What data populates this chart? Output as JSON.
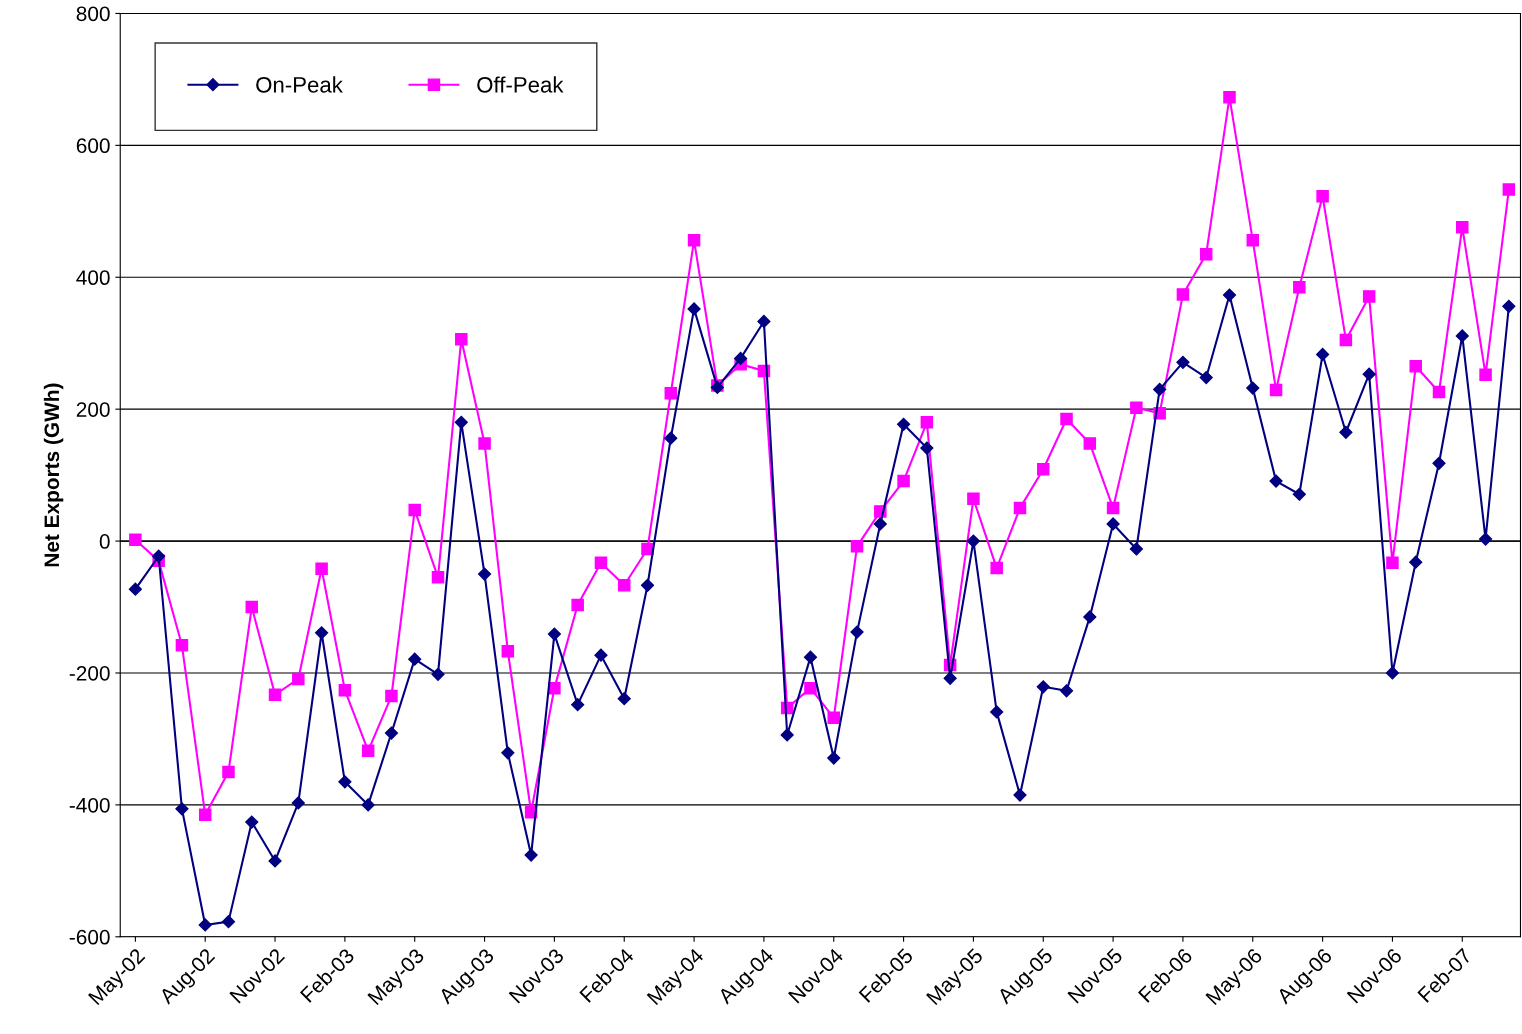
{
  "chart_data": {
    "type": "line",
    "ylabel": "Net Exports (GWh)",
    "categories": [
      "May-02",
      null,
      null,
      "Aug-02",
      null,
      null,
      "Nov-02",
      null,
      null,
      "Feb-03",
      null,
      null,
      "May-03",
      null,
      null,
      "Aug-03",
      null,
      null,
      "Nov-03",
      null,
      null,
      "Feb-04",
      null,
      null,
      "May-04",
      null,
      null,
      "Aug-04",
      null,
      null,
      "Nov-04",
      null,
      null,
      "Feb-05",
      null,
      null,
      "May-05",
      null,
      null,
      "Aug-05",
      null,
      null,
      "Nov-05",
      null,
      null,
      "Feb-06",
      null,
      null,
      "May-06",
      null,
      null,
      "Aug-06",
      null,
      null,
      "Nov-06",
      null,
      null,
      "Feb-07",
      null,
      null
    ],
    "series": [
      {
        "name": "On-Peak",
        "color": "#000080",
        "marker": "diamond",
        "values": [
          -73,
          -23,
          -406,
          -582,
          -577,
          -426,
          -485,
          -397,
          -139,
          -365,
          -400,
          -291,
          -179,
          -202,
          180,
          -50,
          -321,
          -476,
          -141,
          -248,
          -173,
          -239,
          -67,
          156,
          352,
          233,
          277,
          333,
          -294,
          -176,
          -329,
          -138,
          26,
          177,
          141,
          -208,
          0,
          -259,
          -385,
          -221,
          -227,
          -115,
          26,
          -12,
          230,
          271,
          248,
          373,
          232,
          91,
          71,
          283,
          165,
          253,
          -200,
          -32,
          118,
          311,
          3,
          356
        ]
      },
      {
        "name": "Off-Peak",
        "color": "#ff00ff",
        "marker": "square",
        "values": [
          2,
          -30,
          -158,
          -415,
          -350,
          -100,
          -233,
          -209,
          -42,
          -226,
          -318,
          -235,
          47,
          -55,
          306,
          148,
          -167,
          -411,
          -223,
          -97,
          -33,
          -67,
          -12,
          224,
          456,
          236,
          268,
          258,
          -253,
          -223,
          -268,
          -8,
          45,
          91,
          180,
          -188,
          64,
          -41,
          50,
          109,
          185,
          148,
          50,
          202,
          194,
          374,
          435,
          673,
          456,
          229,
          385,
          523,
          305,
          371,
          -33,
          265,
          226,
          476,
          252,
          533
        ]
      }
    ],
    "ylim": [
      -600,
      800
    ],
    "yticks": [
      -600,
      -400,
      -200,
      0,
      200,
      400,
      600,
      800
    ],
    "grid": "y",
    "legend": "top left",
    "line_style": "solid"
  }
}
